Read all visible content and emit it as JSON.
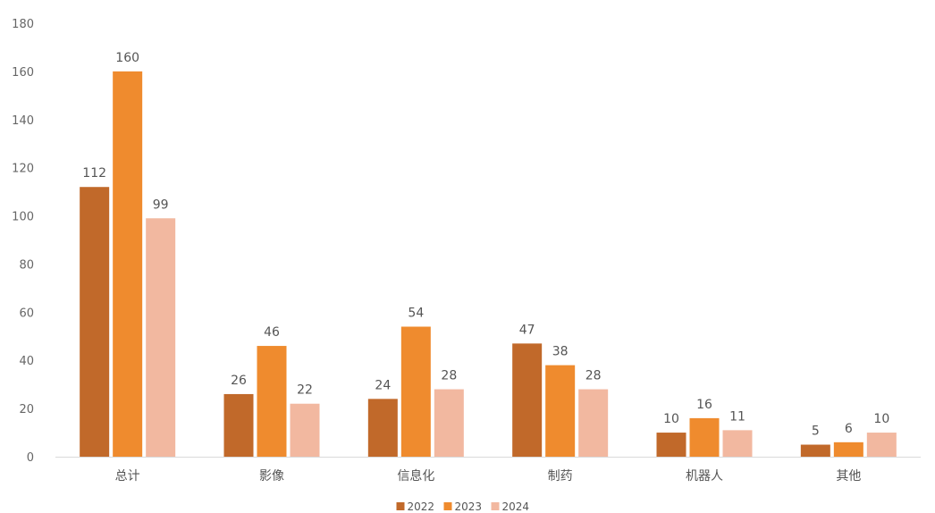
{
  "chart_data": {
    "type": "bar",
    "title": "",
    "xlabel": "",
    "ylabel": "",
    "categories": [
      "总计",
      "影像",
      "信息化",
      "制药",
      "机器人",
      "其他"
    ],
    "series": [
      {
        "name": "2022",
        "color": "#c1692a",
        "values": [
          112,
          26,
          24,
          47,
          10,
          5
        ]
      },
      {
        "name": "2023",
        "color": "#ef8b2e",
        "values": [
          160,
          46,
          54,
          38,
          16,
          6
        ]
      },
      {
        "name": "2024",
        "color": "#f2b8a0",
        "values": [
          99,
          22,
          28,
          28,
          11,
          10
        ]
      }
    ],
    "ylim": [
      0,
      180
    ],
    "yticks": [
      0,
      20,
      40,
      60,
      80,
      100,
      120,
      140,
      160,
      180
    ],
    "grid": false,
    "legend_position": "bottom-center",
    "data_labels": true
  }
}
